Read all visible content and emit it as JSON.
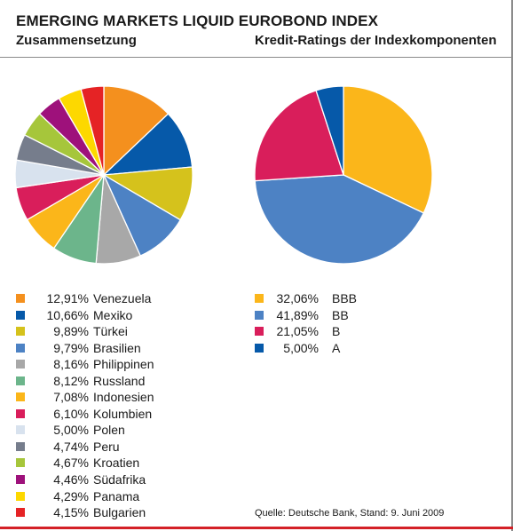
{
  "header": {
    "title": "EMERGING MARKETS LIQUID EUROBOND INDEX",
    "subtitle_left": "Zusammensetzung",
    "subtitle_right": "Kredit-Ratings der Indexkomponenten"
  },
  "chart_data": [
    {
      "type": "pie",
      "title": "Zusammensetzung",
      "labels": [
        "Venezuela",
        "Mexiko",
        "Türkei",
        "Brasilien",
        "Philippinen",
        "Russland",
        "Indonesien",
        "Kolumbien",
        "Polen",
        "Peru",
        "Kroatien",
        "Südafrika",
        "Panama",
        "Bulgarien"
      ],
      "value_labels": [
        "12,91%",
        "10,66%",
        "9,89%",
        "9,79%",
        "8,16%",
        "8,12%",
        "7,08%",
        "6,10%",
        "5,00%",
        "4,74%",
        "4,67%",
        "4,46%",
        "4,29%",
        "4,15%"
      ],
      "values": [
        12.91,
        10.66,
        9.89,
        9.79,
        8.16,
        8.12,
        7.08,
        6.1,
        5.0,
        4.74,
        4.67,
        4.46,
        4.29,
        4.15
      ],
      "colors": [
        "#f4901e",
        "#0659a9",
        "#d5c21c",
        "#4d82c4",
        "#a8a8a8",
        "#6cb58b",
        "#fbb61a",
        "#d91e5b",
        "#d8e2ee",
        "#767d8c",
        "#a6c63b",
        "#9e117b",
        "#fdd800",
        "#e52325"
      ],
      "legend": "bottom"
    },
    {
      "type": "pie",
      "title": "Kredit-Ratings der Indexkomponenten",
      "labels": [
        "BBB",
        "BB",
        "B",
        "A"
      ],
      "value_labels": [
        "32,06%",
        "41,89%",
        "21,05%",
        "5,00%"
      ],
      "values": [
        32.06,
        41.89,
        21.05,
        5.0
      ],
      "colors": [
        "#fbb61a",
        "#4d82c4",
        "#d91e5b",
        "#0659a9"
      ],
      "legend": "bottom"
    }
  ],
  "source": "Quelle: Deutsche Bank, Stand: 9. Juni 2009"
}
